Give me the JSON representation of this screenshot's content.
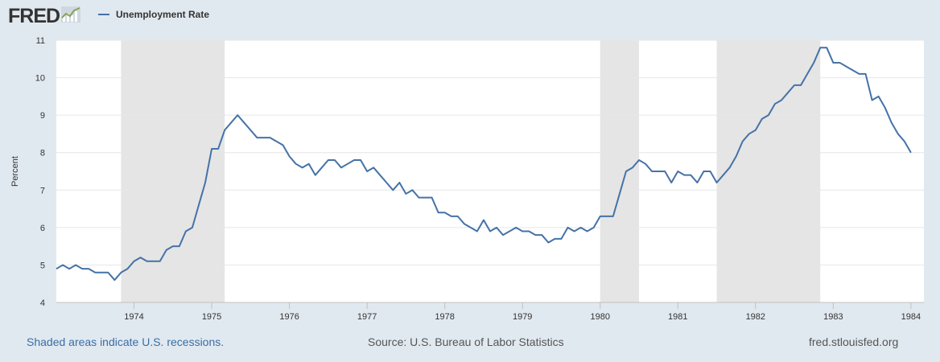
{
  "header": {
    "logo_text": "FRED",
    "logo_icon": "chart-line-icon",
    "legend_label": "Unemployment Rate"
  },
  "footer": {
    "recessions_note": "Shaded areas indicate U.S. recessions.",
    "source": "Source: U.S. Bureau of Labor Statistics",
    "site": "fred.stlouisfed.org"
  },
  "colors": {
    "series": "#4572a7",
    "recession": "#e5e5e5",
    "background": "#e1e9f0"
  },
  "chart_data": {
    "type": "line",
    "title": "",
    "xlabel": "",
    "ylabel": "Percent",
    "ylim": [
      4,
      11
    ],
    "yticks": [
      4,
      5,
      6,
      7,
      8,
      9,
      10,
      11
    ],
    "xlim": [
      1973.0,
      1984.167
    ],
    "xticks": [
      {
        "value": 1974.0,
        "label": "1974"
      },
      {
        "value": 1975.0,
        "label": "1975"
      },
      {
        "value": 1976.0,
        "label": "1976"
      },
      {
        "value": 1977.0,
        "label": "1977"
      },
      {
        "value": 1978.0,
        "label": "1978"
      },
      {
        "value": 1979.0,
        "label": "1979"
      },
      {
        "value": 1980.0,
        "label": "1980"
      },
      {
        "value": 1981.0,
        "label": "1981"
      },
      {
        "value": 1982.0,
        "label": "1982"
      },
      {
        "value": 1983.0,
        "label": "1983"
      },
      {
        "value": 1984.0,
        "label": "1984"
      }
    ],
    "recessions": [
      {
        "start": 1973.833,
        "end": 1975.167
      },
      {
        "start": 1980.0,
        "end": 1980.5
      },
      {
        "start": 1981.5,
        "end": 1982.833
      }
    ],
    "series": [
      {
        "name": "Unemployment Rate",
        "start_year": 1973,
        "frequency": "monthly",
        "values": [
          4.9,
          5.0,
          4.9,
          5.0,
          4.9,
          4.9,
          4.8,
          4.8,
          4.8,
          4.6,
          4.8,
          4.9,
          5.1,
          5.2,
          5.1,
          5.1,
          5.1,
          5.4,
          5.5,
          5.5,
          5.9,
          6.0,
          6.6,
          7.2,
          8.1,
          8.1,
          8.6,
          8.8,
          9.0,
          8.8,
          8.6,
          8.4,
          8.4,
          8.4,
          8.3,
          8.2,
          7.9,
          7.7,
          7.6,
          7.7,
          7.4,
          7.6,
          7.8,
          7.8,
          7.6,
          7.7,
          7.8,
          7.8,
          7.5,
          7.6,
          7.4,
          7.2,
          7.0,
          7.2,
          6.9,
          7.0,
          6.8,
          6.8,
          6.8,
          6.4,
          6.4,
          6.3,
          6.3,
          6.1,
          6.0,
          5.9,
          6.2,
          5.9,
          6.0,
          5.8,
          5.9,
          6.0,
          5.9,
          5.9,
          5.8,
          5.8,
          5.6,
          5.7,
          5.7,
          6.0,
          5.9,
          6.0,
          5.9,
          6.0,
          6.3,
          6.3,
          6.3,
          6.9,
          7.5,
          7.6,
          7.8,
          7.7,
          7.5,
          7.5,
          7.5,
          7.2,
          7.5,
          7.4,
          7.4,
          7.2,
          7.5,
          7.5,
          7.2,
          7.4,
          7.6,
          7.9,
          8.3,
          8.5,
          8.6,
          8.9,
          9.0,
          9.3,
          9.4,
          9.6,
          9.8,
          9.8,
          10.1,
          10.4,
          10.8,
          10.8,
          10.4,
          10.4,
          10.3,
          10.2,
          10.1,
          10.1,
          9.4,
          9.5,
          9.2,
          8.8,
          8.5,
          8.3,
          8.0
        ]
      }
    ]
  }
}
